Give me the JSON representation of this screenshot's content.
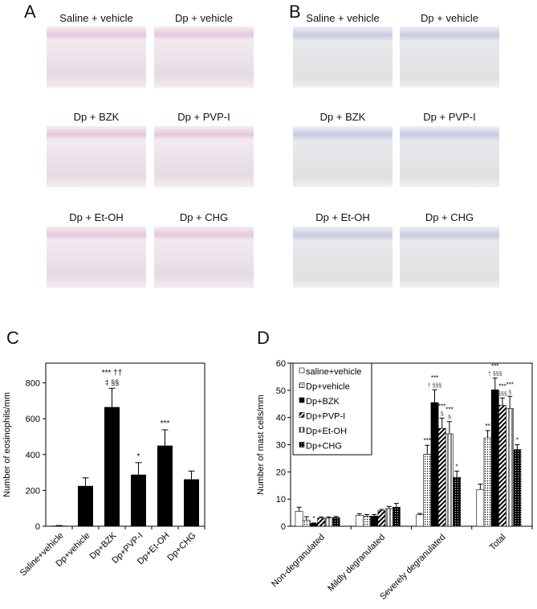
{
  "panels": {
    "a": "A",
    "b": "B",
    "c": "C",
    "d": "D"
  },
  "histology": {
    "a": [
      "Saline + vehicle",
      "Dp + vehicle",
      "Dp + BZK",
      "Dp + PVP-I",
      "Dp + Et-OH",
      "Dp + CHG"
    ],
    "b": [
      "Saline + vehicle",
      "Dp + vehicle",
      "Dp + BZK",
      "Dp + PVP-I",
      "Dp + Et-OH",
      "Dp + CHG"
    ]
  },
  "chart_data": [
    {
      "type": "bar",
      "panel": "C",
      "ylabel": "Number of eosinophils/mm",
      "ylim": [
        0,
        910
      ],
      "yticks": [
        0,
        200,
        400,
        600,
        800
      ],
      "categories": [
        "Saline+vehicle",
        "Dp+vehicle",
        "Dp+BZK",
        "Dp+PVP-I",
        "Dp+Et-OH",
        "Dp+CHG"
      ],
      "values": [
        3,
        225,
        665,
        288,
        450,
        262
      ],
      "error_upper": [
        4,
        270,
        770,
        355,
        538,
        308
      ],
      "annotations": [
        "",
        "",
        "*** †† ‡ §§",
        "*",
        "***",
        ""
      ],
      "color": "#000000"
    },
    {
      "type": "bar",
      "panel": "D",
      "ylabel": "Number of mast cells/mm",
      "ylim": [
        0,
        60
      ],
      "yticks": [
        0,
        10,
        20,
        30,
        40,
        50,
        60
      ],
      "legend": "top-left",
      "categories": [
        "Non-degranulated",
        "Mildly degranulated",
        "Severely degranulated",
        "Total"
      ],
      "series": [
        {
          "name": "saline+vehicle",
          "fill": "white",
          "values": [
            5.5,
            4.0,
            4.2,
            13.5
          ],
          "error_upper": [
            7,
            4.6,
            4.7,
            15.5
          ],
          "annotations": [
            "",
            "",
            "",
            ""
          ]
        },
        {
          "name": "Dp+vehicle",
          "fill": "dotted",
          "values": [
            2.2,
            3.7,
            26.5,
            32.5
          ],
          "error_upper": [
            3.5,
            4.3,
            29.8,
            35.2
          ],
          "annotations": [
            "",
            "",
            "***",
            "**"
          ]
        },
        {
          "name": "Dp+BZK",
          "fill": "black",
          "values": [
            1.0,
            3.7,
            45.5,
            50.2
          ],
          "error_upper": [
            1.2,
            4.3,
            50.2,
            54.5
          ],
          "annotations": [
            "*",
            "",
            "*** † §§§",
            "*** † §§§"
          ]
        },
        {
          "name": "Dp+PVP-I",
          "fill": "hatched",
          "values": [
            3.0,
            5.7,
            36,
            44.5
          ],
          "error_upper": [
            3.4,
            6.2,
            39.8,
            47.2
          ],
          "annotations": [
            "",
            "",
            "*** §",
            "*** §§§"
          ]
        },
        {
          "name": "Dp+Et-OH",
          "fill": "striped",
          "values": [
            3.0,
            6.5,
            34,
            43.3
          ],
          "error_upper": [
            3.4,
            7.3,
            38.5,
            47.8
          ],
          "annotations": [
            "",
            "",
            "*** §",
            "*** §"
          ]
        },
        {
          "name": "Dp+CHG",
          "fill": "checkered",
          "values": [
            3.2,
            7.0,
            18,
            28.2
          ],
          "error_upper": [
            3.6,
            8.4,
            20.3,
            30.0
          ],
          "annotations": [
            "",
            "",
            "*",
            "*"
          ]
        }
      ]
    }
  ]
}
